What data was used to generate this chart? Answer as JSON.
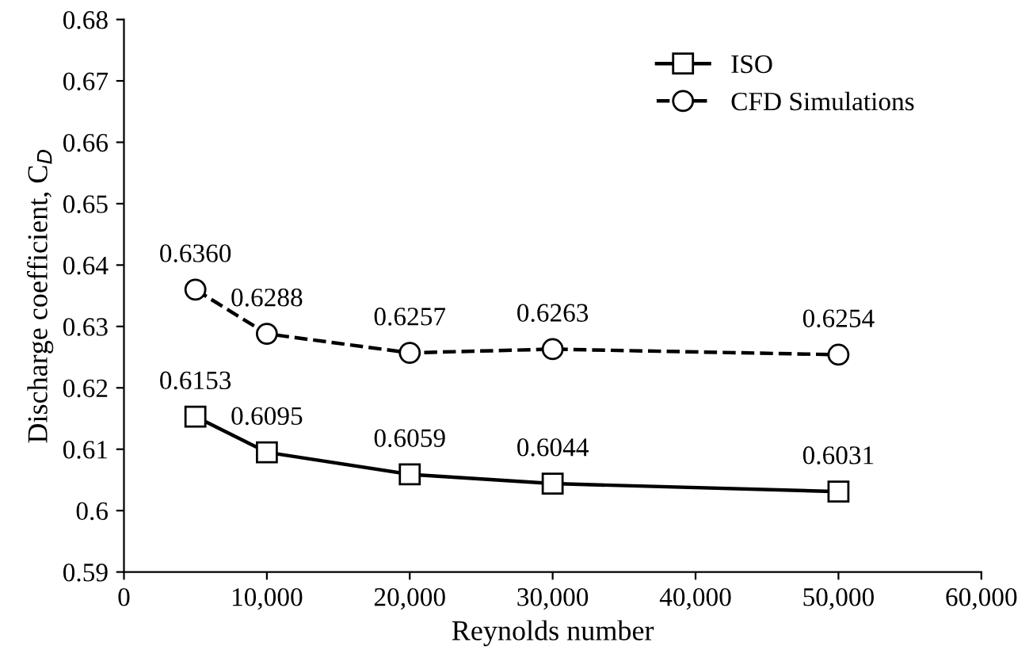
{
  "chart_data": {
    "type": "line",
    "xlabel": "Reynolds number",
    "ylabel": "Discharge coefficient, C$_{D}$",
    "x": [
      5000,
      10000,
      20000,
      30000,
      50000
    ],
    "series": [
      {
        "name": "ISO",
        "color": "#000000",
        "marker": "square",
        "line_style": "solid",
        "values": [
          0.6153,
          0.6095,
          0.6059,
          0.6044,
          0.6031
        ],
        "value_labels": [
          "0.6153",
          "0.6095",
          "0.6059",
          "0.6044",
          "0.6031"
        ]
      },
      {
        "name": "CFD Simulations",
        "color": "#000000",
        "marker": "circle",
        "line_style": "dashed",
        "values": [
          0.636,
          0.6288,
          0.6257,
          0.6263,
          0.6254
        ],
        "value_labels": [
          "0.6360",
          "0.6288",
          "0.6257",
          "0.6263",
          "0.6254"
        ]
      }
    ],
    "xlim": [
      0,
      60000
    ],
    "xticks": [
      0,
      {
        "value": 10000,
        "label": "10,000"
      },
      {
        "value": 20000,
        "label": "20,000"
      },
      {
        "value": 30000,
        "label": "30,000"
      },
      {
        "value": 40000,
        "label": "40,000"
      },
      {
        "value": 50000,
        "label": "50,000"
      },
      {
        "value": 60000,
        "label": "60,000"
      }
    ],
    "ylim": [
      0.59,
      0.68
    ],
    "yticks": [
      0.59,
      0.6,
      0.61,
      0.62,
      0.63,
      0.64,
      0.65,
      0.66,
      0.67,
      0.68
    ],
    "grid": false,
    "legend": "top right"
  }
}
